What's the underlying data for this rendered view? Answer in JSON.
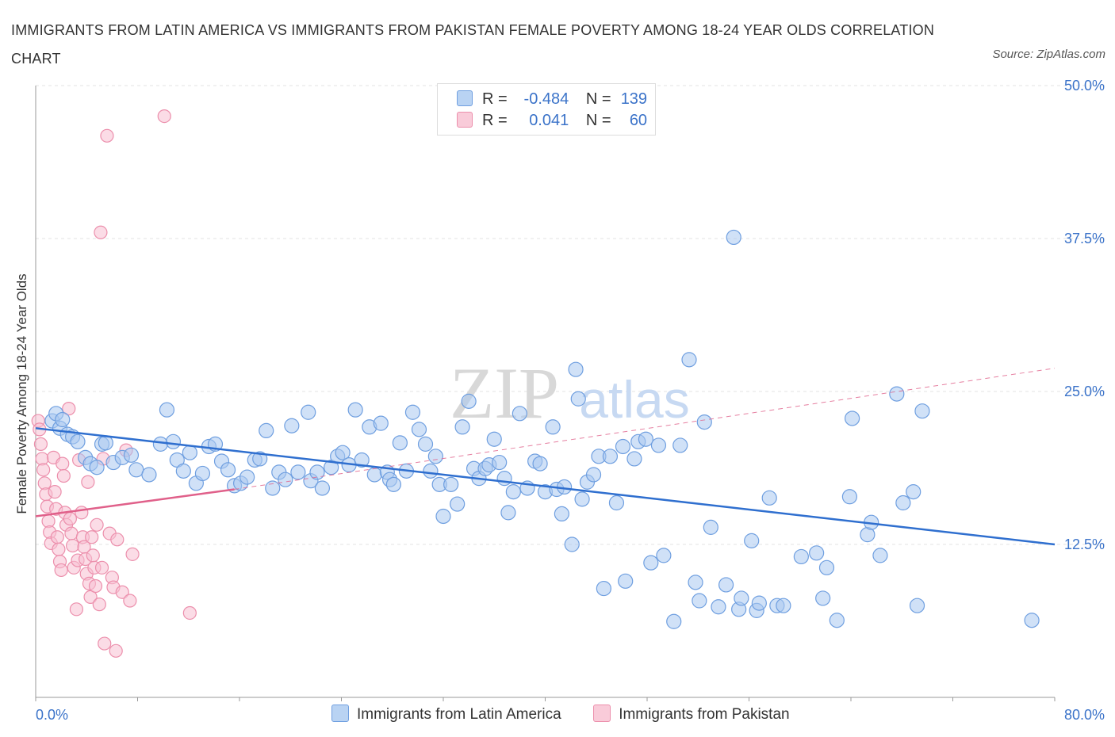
{
  "title": "IMMIGRANTS FROM LATIN AMERICA VS IMMIGRANTS FROM PAKISTAN FEMALE POVERTY AMONG 18-24 YEAR OLDS CORRELATION CHART",
  "source": "Source: ZipAtlas.com",
  "watermark": {
    "zip": "ZIP",
    "atlas": "atlas"
  },
  "legend": {
    "r_label": "R =",
    "n_label": "N =",
    "latin": {
      "r": "-0.484",
      "n": "139"
    },
    "pakistan": {
      "r": "0.041",
      "n": "60"
    }
  },
  "bottom_legend": {
    "latin": "Immigrants from Latin America",
    "pakistan": "Immigrants from Pakistan"
  },
  "colors": {
    "latin_fill": "#a9c8f0",
    "latin_stroke": "#6f9fe0",
    "latin_line": "#2f6fcf",
    "pakistan_fill": "#f8c0d2",
    "pakistan_stroke": "#ec8fac",
    "pakistan_line": "#e0608a",
    "axis_text": "#3b73c9",
    "grid": "#e3e3e3"
  },
  "chart_data": {
    "type": "scatter",
    "title": "IMMIGRANTS FROM LATIN AMERICA VS IMMIGRANTS FROM PAKISTAN FEMALE POVERTY AMONG 18-24 YEAR OLDS CORRELATION CHART",
    "xlabel": "",
    "ylabel": "Female Poverty Among 18-24 Year Olds",
    "xlim": [
      0,
      80
    ],
    "ylim": [
      0,
      50
    ],
    "x_ticks": [
      "0.0%",
      "80.0%"
    ],
    "y_ticks": [
      {
        "value": 12.5,
        "label": "12.5%"
      },
      {
        "value": 25.0,
        "label": "25.0%"
      },
      {
        "value": 37.5,
        "label": "37.5%"
      },
      {
        "value": 50.0,
        "label": "50.0%"
      }
    ],
    "grid": "horizontal dashed",
    "legend_position": "top-center",
    "series": [
      {
        "name": "Immigrants from Latin America",
        "r": -0.484,
        "n": 139,
        "trend": {
          "x": [
            0,
            80
          ],
          "y": [
            22.0,
            12.5
          ],
          "style": "solid"
        },
        "points": [
          [
            1.3,
            22.6
          ],
          [
            1.6,
            23.2
          ],
          [
            1.9,
            22.0
          ],
          [
            2.1,
            22.7
          ],
          [
            2.5,
            21.5
          ],
          [
            2.9,
            21.3
          ],
          [
            3.3,
            20.9
          ],
          [
            3.9,
            19.6
          ],
          [
            4.3,
            19.1
          ],
          [
            4.8,
            18.8
          ],
          [
            5.2,
            20.7
          ],
          [
            5.5,
            20.8
          ],
          [
            6.1,
            19.2
          ],
          [
            6.8,
            19.6
          ],
          [
            7.5,
            19.8
          ],
          [
            7.9,
            18.6
          ],
          [
            8.9,
            18.2
          ],
          [
            9.8,
            20.7
          ],
          [
            10.3,
            23.5
          ],
          [
            10.8,
            20.9
          ],
          [
            11.1,
            19.4
          ],
          [
            11.6,
            18.5
          ],
          [
            12.1,
            20.0
          ],
          [
            12.6,
            17.5
          ],
          [
            13.1,
            18.3
          ],
          [
            13.6,
            20.5
          ],
          [
            14.1,
            20.7
          ],
          [
            14.6,
            19.3
          ],
          [
            15.1,
            18.6
          ],
          [
            15.6,
            17.3
          ],
          [
            16.1,
            17.5
          ],
          [
            16.6,
            18.0
          ],
          [
            17.2,
            19.4
          ],
          [
            17.6,
            19.5
          ],
          [
            18.1,
            21.8
          ],
          [
            18.6,
            17.1
          ],
          [
            19.1,
            18.4
          ],
          [
            19.6,
            17.8
          ],
          [
            20.1,
            22.2
          ],
          [
            20.6,
            18.4
          ],
          [
            21.4,
            23.3
          ],
          [
            21.6,
            17.7
          ],
          [
            22.1,
            18.4
          ],
          [
            22.5,
            17.1
          ],
          [
            23.2,
            18.8
          ],
          [
            23.7,
            19.7
          ],
          [
            24.1,
            20.0
          ],
          [
            24.6,
            19.0
          ],
          [
            25.1,
            23.5
          ],
          [
            25.6,
            19.4
          ],
          [
            26.2,
            22.1
          ],
          [
            26.6,
            18.2
          ],
          [
            27.1,
            22.4
          ],
          [
            27.6,
            18.4
          ],
          [
            27.8,
            17.8
          ],
          [
            28.1,
            17.4
          ],
          [
            28.6,
            20.8
          ],
          [
            29.1,
            18.5
          ],
          [
            29.6,
            23.3
          ],
          [
            30.1,
            21.9
          ],
          [
            30.6,
            20.7
          ],
          [
            31.0,
            18.5
          ],
          [
            31.4,
            19.7
          ],
          [
            31.7,
            17.4
          ],
          [
            32.0,
            14.8
          ],
          [
            32.6,
            17.4
          ],
          [
            33.1,
            15.8
          ],
          [
            33.5,
            22.1
          ],
          [
            34.0,
            24.2
          ],
          [
            34.4,
            18.7
          ],
          [
            34.8,
            17.9
          ],
          [
            35.3,
            18.7
          ],
          [
            35.6,
            19.0
          ],
          [
            36.0,
            21.1
          ],
          [
            36.4,
            19.2
          ],
          [
            36.8,
            17.9
          ],
          [
            37.1,
            15.1
          ],
          [
            37.5,
            16.8
          ],
          [
            38.0,
            23.2
          ],
          [
            38.6,
            17.1
          ],
          [
            39.2,
            19.3
          ],
          [
            39.6,
            19.1
          ],
          [
            40.0,
            16.8
          ],
          [
            40.6,
            22.1
          ],
          [
            40.9,
            17.0
          ],
          [
            41.3,
            15.0
          ],
          [
            41.5,
            17.2
          ],
          [
            42.1,
            12.5
          ],
          [
            42.4,
            26.8
          ],
          [
            42.6,
            24.4
          ],
          [
            42.9,
            16.2
          ],
          [
            43.3,
            17.6
          ],
          [
            43.8,
            18.2
          ],
          [
            44.2,
            19.7
          ],
          [
            44.6,
            8.9
          ],
          [
            45.1,
            19.7
          ],
          [
            45.6,
            15.9
          ],
          [
            46.1,
            20.5
          ],
          [
            46.3,
            9.5
          ],
          [
            47.0,
            19.5
          ],
          [
            47.3,
            20.9
          ],
          [
            47.9,
            21.1
          ],
          [
            48.3,
            11.0
          ],
          [
            48.9,
            20.6
          ],
          [
            49.3,
            11.6
          ],
          [
            50.1,
            6.2
          ],
          [
            50.6,
            20.6
          ],
          [
            51.3,
            27.6
          ],
          [
            51.8,
            9.4
          ],
          [
            52.1,
            7.9
          ],
          [
            52.5,
            22.5
          ],
          [
            53.0,
            13.9
          ],
          [
            53.6,
            7.4
          ],
          [
            54.2,
            9.2
          ],
          [
            54.8,
            37.6
          ],
          [
            55.2,
            7.2
          ],
          [
            55.4,
            8.1
          ],
          [
            56.2,
            12.8
          ],
          [
            56.6,
            7.1
          ],
          [
            56.8,
            7.7
          ],
          [
            57.6,
            16.3
          ],
          [
            58.2,
            7.5
          ],
          [
            58.7,
            7.5
          ],
          [
            60.1,
            11.5
          ],
          [
            61.3,
            11.8
          ],
          [
            61.8,
            8.1
          ],
          [
            62.1,
            10.6
          ],
          [
            62.9,
            6.3
          ],
          [
            63.9,
            16.4
          ],
          [
            64.1,
            22.8
          ],
          [
            65.3,
            13.3
          ],
          [
            65.6,
            14.3
          ],
          [
            66.3,
            11.6
          ],
          [
            67.6,
            24.8
          ],
          [
            68.1,
            15.9
          ],
          [
            68.9,
            16.8
          ],
          [
            69.2,
            7.5
          ],
          [
            69.6,
            23.4
          ],
          [
            78.2,
            6.3
          ]
        ]
      },
      {
        "name": "Immigrants from Pakistan",
        "r": 0.041,
        "n": 60,
        "trend": {
          "x": [
            0,
            15.6
          ],
          "y": [
            14.8,
            17.0
          ],
          "style": "solid",
          "extended": {
            "x": [
              15.6,
              80
            ],
            "y": [
              17.0,
              26.9
            ],
            "style": "dashed"
          }
        },
        "points": [
          [
            0.2,
            22.6
          ],
          [
            0.3,
            21.9
          ],
          [
            0.4,
            20.7
          ],
          [
            0.5,
            19.5
          ],
          [
            0.6,
            18.6
          ],
          [
            0.7,
            17.5
          ],
          [
            0.8,
            16.6
          ],
          [
            0.9,
            15.6
          ],
          [
            1.0,
            14.4
          ],
          [
            1.1,
            13.5
          ],
          [
            1.2,
            12.6
          ],
          [
            1.4,
            19.6
          ],
          [
            1.5,
            16.8
          ],
          [
            1.6,
            15.4
          ],
          [
            1.7,
            13.1
          ],
          [
            1.8,
            12.1
          ],
          [
            1.9,
            11.1
          ],
          [
            2.0,
            10.4
          ],
          [
            2.1,
            19.1
          ],
          [
            2.2,
            18.1
          ],
          [
            2.3,
            15.1
          ],
          [
            2.4,
            14.1
          ],
          [
            2.6,
            23.6
          ],
          [
            2.7,
            14.6
          ],
          [
            2.8,
            13.4
          ],
          [
            2.9,
            12.4
          ],
          [
            3.0,
            10.6
          ],
          [
            3.2,
            7.2
          ],
          [
            3.3,
            11.2
          ],
          [
            3.4,
            19.4
          ],
          [
            3.6,
            15.1
          ],
          [
            3.7,
            13.1
          ],
          [
            3.8,
            12.3
          ],
          [
            3.9,
            11.3
          ],
          [
            4.0,
            10.1
          ],
          [
            4.1,
            17.6
          ],
          [
            4.2,
            9.3
          ],
          [
            4.3,
            8.2
          ],
          [
            4.4,
            13.1
          ],
          [
            4.5,
            11.6
          ],
          [
            4.6,
            10.6
          ],
          [
            4.7,
            9.1
          ],
          [
            4.8,
            14.1
          ],
          [
            5.0,
            7.6
          ],
          [
            5.1,
            38.0
          ],
          [
            5.2,
            10.6
          ],
          [
            5.3,
            19.5
          ],
          [
            5.4,
            4.4
          ],
          [
            5.6,
            45.9
          ],
          [
            5.8,
            13.4
          ],
          [
            6.0,
            9.8
          ],
          [
            6.1,
            9.0
          ],
          [
            6.3,
            3.8
          ],
          [
            6.4,
            12.9
          ],
          [
            6.8,
            8.6
          ],
          [
            7.1,
            20.2
          ],
          [
            7.4,
            7.9
          ],
          [
            7.6,
            11.7
          ],
          [
            10.1,
            47.5
          ],
          [
            12.1,
            6.9
          ]
        ]
      }
    ]
  }
}
